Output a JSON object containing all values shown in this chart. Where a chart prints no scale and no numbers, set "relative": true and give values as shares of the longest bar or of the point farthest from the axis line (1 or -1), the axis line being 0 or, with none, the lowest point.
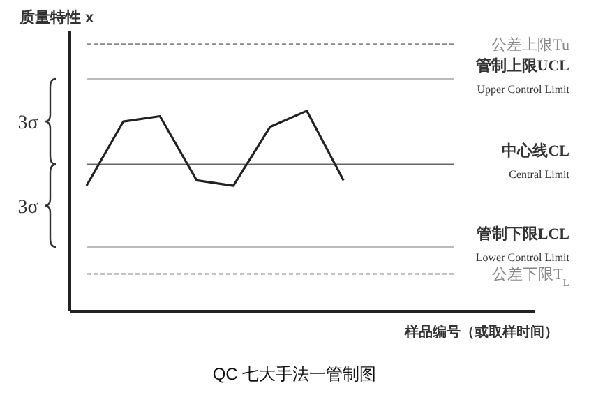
{
  "chart_data": {
    "type": "line",
    "relative": true,
    "title": "QC 七大手法一管制图",
    "xlabel": "样品编号（或取样时间）",
    "ylabel": "质量特性 x",
    "categories": [
      null,
      null,
      null,
      null,
      null,
      null,
      null,
      null,
      null,
      null,
      null
    ],
    "tick_labels": false,
    "series": [
      {
        "name": "公差上限Tu",
        "color": "#888888",
        "line_style": "dashed",
        "values": [
          1,
          1,
          1,
          1,
          1,
          1,
          1,
          1,
          1,
          1,
          1
        ]
      },
      {
        "name": "管制上限UCL\nUpper Control Limit",
        "color": "#bbbbbb",
        "line_style": "solid",
        "values": [
          0.87,
          0.87,
          0.87,
          0.87,
          0.87,
          0.87,
          0.87,
          0.87,
          0.87,
          0.87,
          0.87
        ]
      },
      {
        "name": "中心线CL\nCentral Limit",
        "color": "#666666",
        "line_style": "solid",
        "values": [
          0.55,
          0.55,
          0.55,
          0.55,
          0.55,
          0.55,
          0.55,
          0.55,
          0.55,
          0.55,
          0.55
        ]
      },
      {
        "name": "管制下限LCL\nLower Control Limit",
        "color": "#bbbbbb",
        "line_style": "solid",
        "values": [
          0.24,
          0.24,
          0.24,
          0.24,
          0.24,
          0.24,
          0.24,
          0.24,
          0.24,
          0.24,
          0.24
        ]
      },
      {
        "name": "公差下限T$_{L}$",
        "color": "#888888",
        "line_style": "dashed",
        "values": [
          0.14,
          0.14,
          0.14,
          0.14,
          0.14,
          0.14,
          0.14,
          0.14,
          0.14,
          0.14,
          0.14
        ]
      },
      {
        "color": "#222222",
        "values": [
          0.47,
          0.71,
          0.73,
          0.49,
          0.47,
          0.69,
          0.75,
          0.49,
          null,
          null,
          null
        ]
      }
    ],
    "annotations": [
      "3σ",
      "3σ"
    ],
    "marker": "none"
  }
}
